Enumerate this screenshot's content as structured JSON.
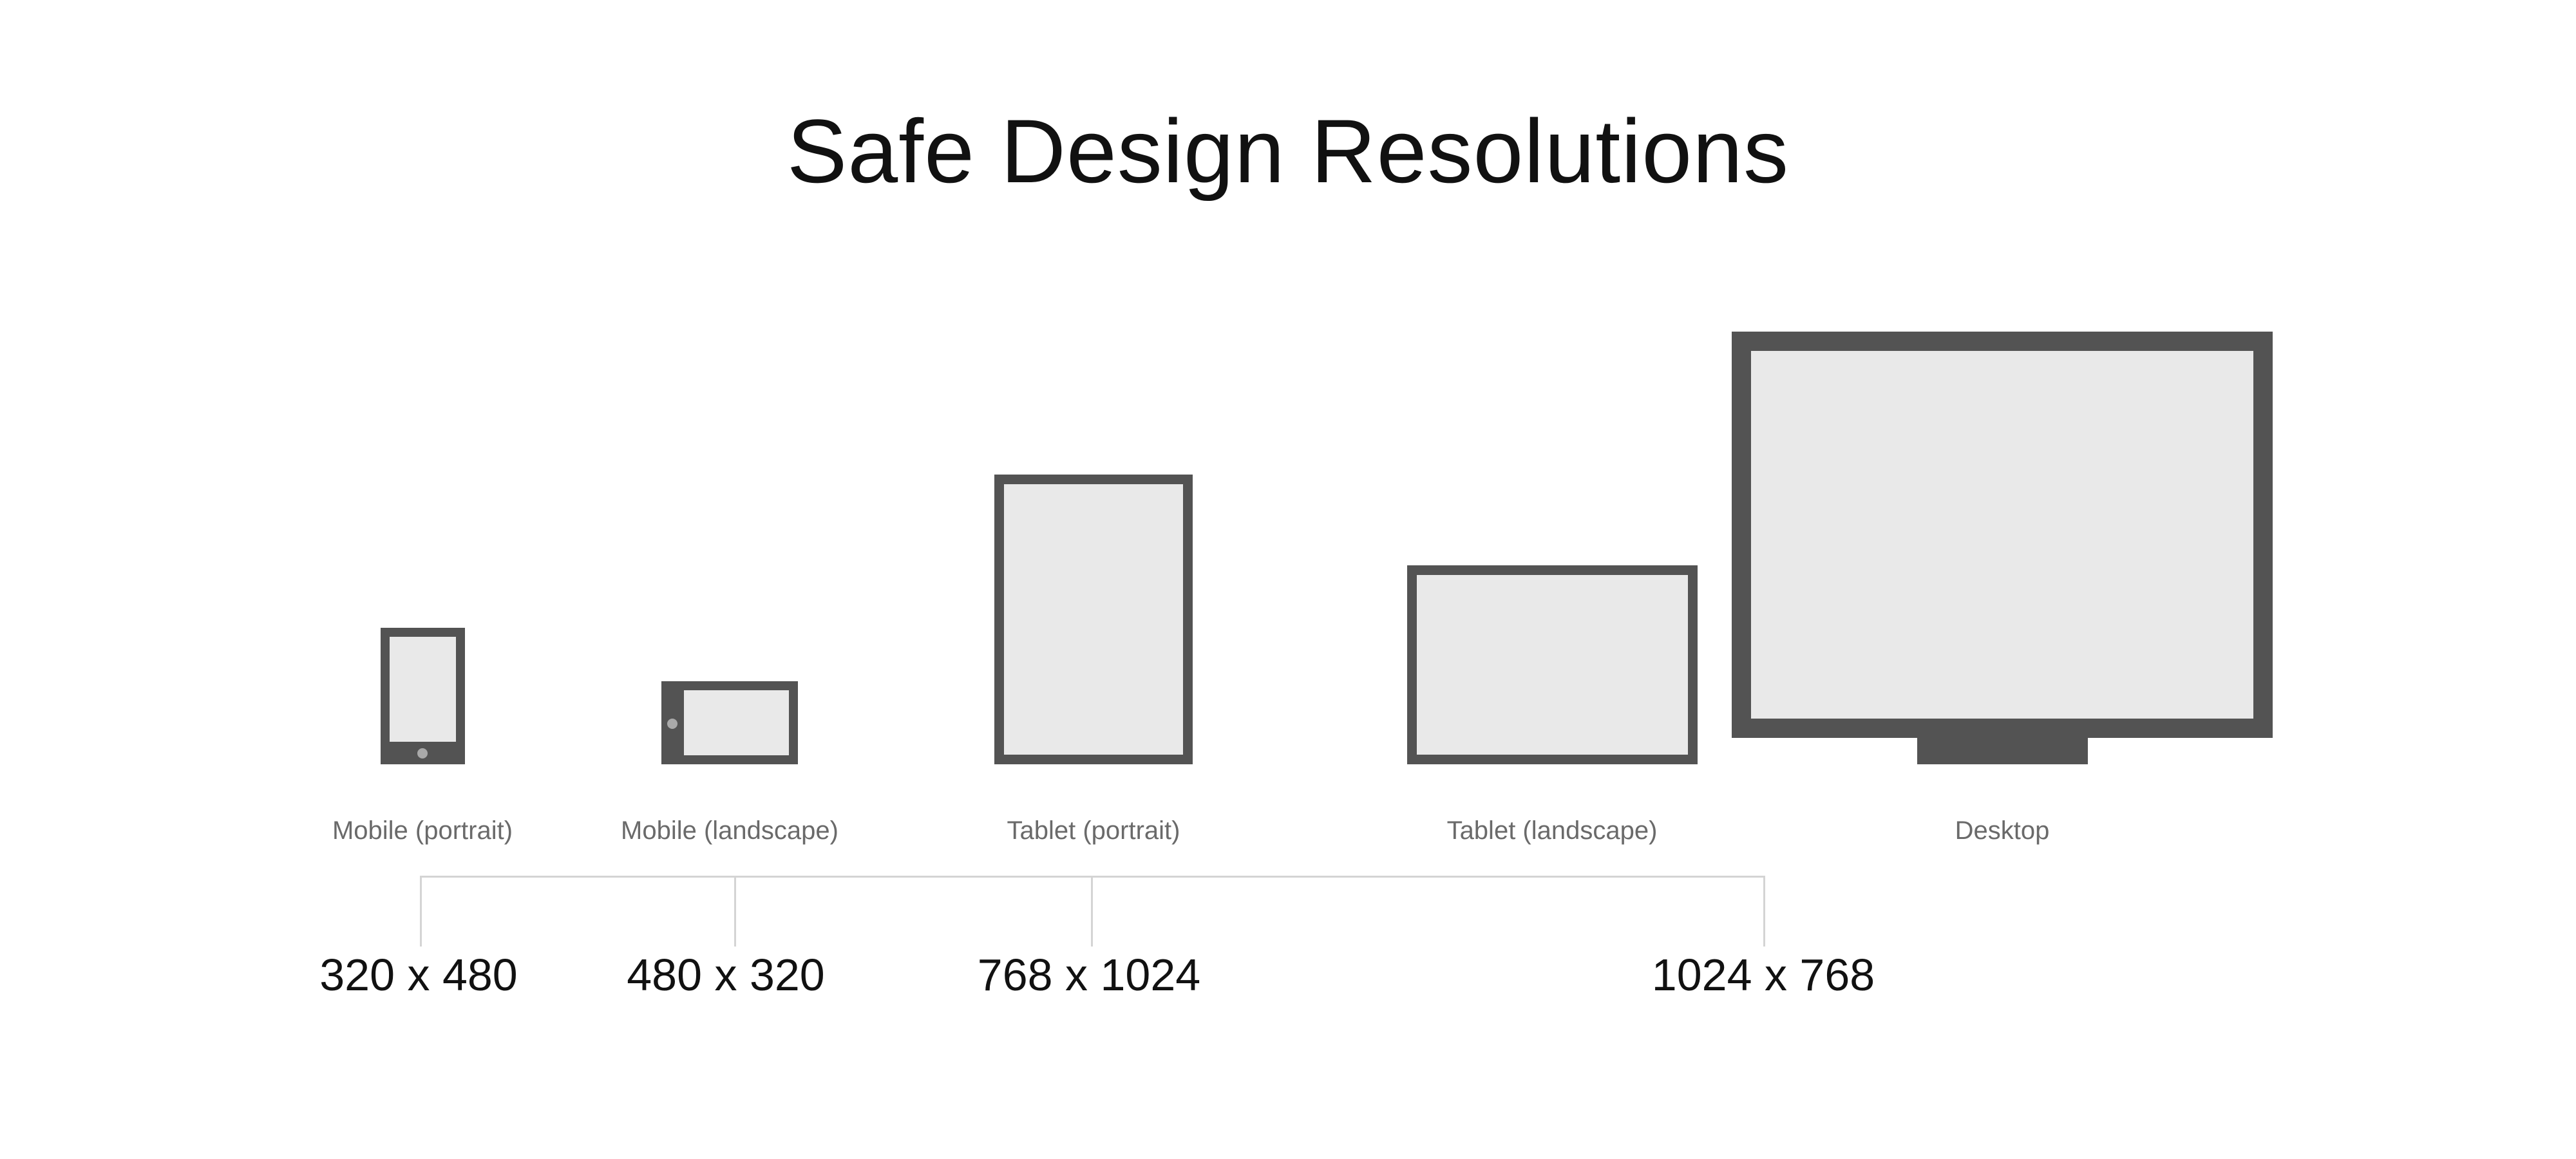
{
  "title": "Safe Design Resolutions",
  "devices": [
    {
      "label": "Mobile (portrait)",
      "icon": "mobile-portrait-icon"
    },
    {
      "label": "Mobile (landscape)",
      "icon": "mobile-landscape-icon"
    },
    {
      "label": "Tablet (portrait)",
      "icon": "tablet-portrait-icon"
    },
    {
      "label": "Tablet (landscape)",
      "icon": "tablet-landscape-icon"
    },
    {
      "label": "Desktop",
      "icon": "desktop-monitor-icon"
    }
  ],
  "resolutions": [
    "320 x 480",
    "480 x 320",
    "768 x 1024",
    "1024 x 768"
  ],
  "colors": {
    "device_frame": "#535353",
    "device_screen": "#e9e9e9",
    "home_button": "#a9a9a9",
    "connector_line": "#d4d4d4",
    "title_text": "#111111",
    "label_text": "#6a6a6a"
  }
}
